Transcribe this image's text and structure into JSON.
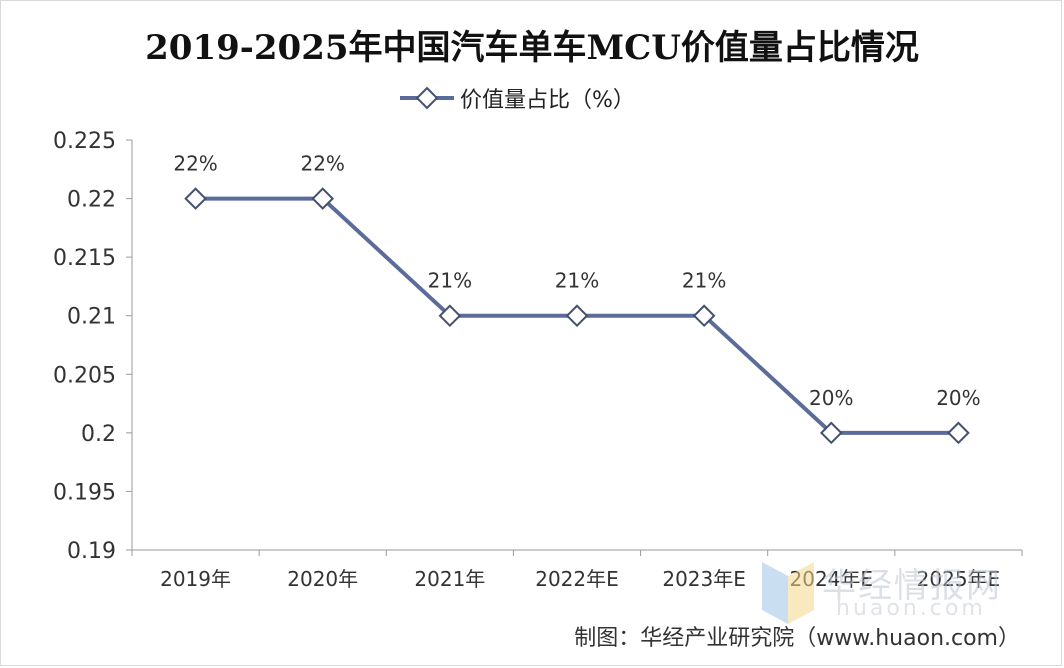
{
  "chart_data": {
    "type": "line",
    "title": "2019-2025年中国汽车单车MCU价值量占比情况",
    "categories": [
      "2019年",
      "2020年",
      "2021年",
      "2022年E",
      "2023年E",
      "2024年E",
      "2025年E"
    ],
    "series": [
      {
        "name": "价值量占比（%）",
        "values": [
          0.22,
          0.22,
          0.21,
          0.21,
          0.21,
          0.2,
          0.2
        ],
        "data_labels": [
          "22%",
          "22%",
          "21%",
          "21%",
          "21%",
          "20%",
          "20%"
        ]
      }
    ],
    "yticks": [
      "0.19",
      "0.195",
      "0.2",
      "0.205",
      "0.21",
      "0.215",
      "0.22",
      "0.225"
    ],
    "ylim": [
      0.19,
      0.225
    ],
    "grid": false,
    "legend_position": "top-center",
    "colors": {
      "line": "#5b6b9a",
      "marker_fill": "#ffffff",
      "marker_stroke": "#44506e",
      "axis": "#9a9a9a"
    }
  },
  "credit": "制图：华经产业研究院（www.huaon.com）",
  "watermark": {
    "text": "华经情报网",
    "url": "huaon.com"
  }
}
